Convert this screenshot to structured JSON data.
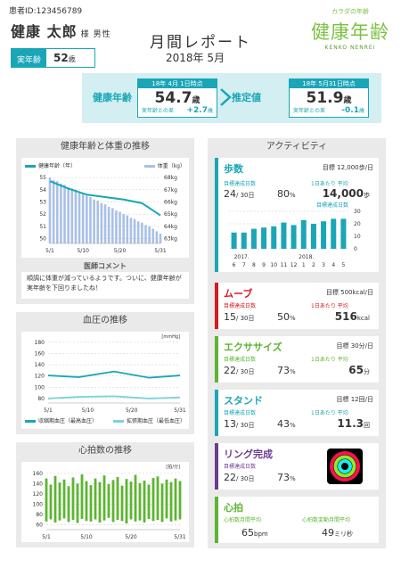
{
  "patient": {
    "id_label": "患者ID:123456789",
    "name": "健康 太郎",
    "honorific": "様",
    "gender": "男性",
    "real_age_label": "実年齢",
    "real_age_value": "52",
    "age_unit": "歳"
  },
  "report": {
    "title": "月間レポート",
    "date": "2018年  5月"
  },
  "logo": {
    "tagline": "カラダの年齢",
    "main": "健康年齢",
    "sub": "KENKO NENREI"
  },
  "banner": {
    "health_age_label": "健康年齢",
    "estimate_label": "推定値",
    "current": {
      "header": "18年  4月  1日時点",
      "value": "54.7",
      "unit": "歳",
      "diff_label": "実年齢との差",
      "diff": "+2.7",
      "diff_unit": "歳"
    },
    "estimate": {
      "header": "18年  5月31日時点",
      "value": "51.9",
      "unit": "歳",
      "diff_label": "実年齢との差",
      "diff": "-0.1",
      "diff_unit": "歳"
    }
  },
  "weight_panel": {
    "title": "健康年齢と体重の推移",
    "legend_age": "健康年齢（年）",
    "legend_weight": "体重（kg）",
    "comment_title": "医師コメント",
    "comment": "順調に体重が減っているようです。ついに、健康年齢が実年齢を下回りましたね！"
  },
  "bp_panel": {
    "title": "血圧の推移",
    "unit": "[mmHg]",
    "legend_sys": "収縮期血圧（最高血圧）",
    "legend_dia": "拡張期血圧（最低血圧）"
  },
  "hr_panel": {
    "title": "心拍数の推移",
    "unit": "[拍/分]"
  },
  "activity": {
    "title": "アクティビティ",
    "steps": {
      "name": "歩数",
      "goal": "目標 12,000歩/日",
      "lbl1": "目標達成日数",
      "lbl2": "1日あたり 平均",
      "days": "24",
      "total": "/ 30日",
      "pct": "80",
      "avg": "14,000",
      "avg_unit": "歩",
      "chart_label": "目標達成日数"
    },
    "move": {
      "name": "ムーブ",
      "goal": "目標  500kcal/日",
      "lbl1": "目標達成日数",
      "lbl2": "1日あたり 平均",
      "days": "15",
      "total": "/ 30日",
      "pct": "50",
      "avg": "516",
      "avg_unit": "kcal"
    },
    "exercise": {
      "name": "エクササイズ",
      "goal": "目標    30分/日",
      "lbl1": "目標達成日数",
      "lbl2": "1日あたり 平均",
      "days": "22",
      "total": "/ 30日",
      "pct": "73",
      "avg": "65",
      "avg_unit": "分"
    },
    "stand": {
      "name": "スタンド",
      "goal": "目標  12回/日",
      "lbl1": "目標達成日数",
      "lbl2": "1日あたり 平均",
      "days": "13",
      "total": "/ 30日",
      "pct": "43",
      "avg": "11.3",
      "avg_unit": "回"
    },
    "ring": {
      "name": "リング完成",
      "lbl1": "目標達成日数",
      "days": "22",
      "total": "/ 30日",
      "pct": "73"
    },
    "heart": {
      "name": "心拍",
      "lbl1": "心拍数月間平均",
      "lbl2": "心拍数変動月間平均",
      "v1": "65",
      "v1_unit": "bpm",
      "v2": "49",
      "v2_unit": "ミリ秒"
    },
    "pct_unit": "%"
  },
  "chart_data": [
    {
      "type": "line",
      "title": "健康年齢と体重の推移",
      "x_ticks": [
        "5/1",
        "5/10",
        "5/20",
        "5/31"
      ],
      "y_left_ticks": [
        "55",
        "54",
        "53",
        "52",
        "51",
        "50"
      ],
      "y_right_ticks": [
        "68kg",
        "67kg",
        "66kg",
        "65kg",
        "64kg",
        "63kg"
      ],
      "y_left_range": [
        49.6,
        55.3
      ],
      "y_right_range": [
        62.6,
        68.3
      ],
      "series": [
        {
          "name": "健康年齢（年）",
          "axis": "left",
          "x": [
            1,
            6,
            11,
            16,
            21,
            26,
            31
          ],
          "values": [
            54.7,
            54.1,
            53.6,
            53.4,
            53.2,
            52.9,
            51.9
          ]
        },
        {
          "name": "体重（kg）",
          "axis": "right",
          "values": [
            68.0,
            67.8,
            67.7,
            67.5,
            67.4,
            67.2,
            67.1,
            67.0,
            66.8,
            66.7,
            66.5,
            66.4,
            66.2,
            66.1,
            65.9,
            65.8,
            65.6,
            65.5,
            65.3,
            65.2,
            65.0,
            64.9,
            64.7,
            64.6,
            64.4,
            64.3,
            64.1,
            64.0,
            63.8,
            63.6,
            63.4
          ]
        }
      ]
    },
    {
      "type": "line",
      "title": "血圧の推移",
      "x_ticks": [
        "5/1",
        "5/10",
        "5/20",
        "5/31"
      ],
      "y_ticks": [
        "180",
        "160",
        "140",
        "120",
        "100",
        "80"
      ],
      "ylim": [
        72,
        186
      ],
      "series": [
        {
          "name": "収縮期血圧（最高血圧）",
          "x": [
            1,
            8,
            16,
            24,
            31
          ],
          "values": [
            121,
            118,
            128,
            117,
            121
          ]
        },
        {
          "name": "拡張期血圧（最低血圧）",
          "x": [
            1,
            8,
            16,
            24,
            31
          ],
          "values": [
            80,
            83,
            84,
            80,
            82
          ]
        }
      ]
    },
    {
      "type": "bar",
      "title": "心拍数の推移",
      "x_ticks": [
        "5/1",
        "5/10",
        "5/20",
        "5/31"
      ],
      "y_ticks": [
        "160",
        "140",
        "120",
        "100",
        "80",
        "60"
      ],
      "ylim": [
        50,
        165
      ],
      "values": [
        150,
        138,
        155,
        142,
        148,
        135,
        152,
        140,
        158,
        145,
        137,
        150,
        143,
        156,
        139,
        147,
        153,
        136,
        149,
        144,
        157,
        141,
        146,
        138,
        151,
        154,
        140,
        148,
        143,
        150,
        145
      ],
      "lows": [
        66,
        70,
        64,
        68,
        72,
        65,
        69,
        63,
        71,
        67,
        66,
        70,
        64,
        68,
        73,
        65,
        69,
        67,
        62,
        70,
        66,
        68,
        64,
        71,
        67,
        69,
        65,
        72,
        66,
        68,
        70
      ]
    },
    {
      "type": "bar",
      "title": "歩数",
      "y_ticks": [
        "30",
        "20",
        "10",
        "0"
      ],
      "ylim": [
        0,
        30
      ],
      "x_ticks": [
        "6",
        "7",
        "8",
        "9",
        "10",
        "11",
        "12",
        "1",
        "2",
        "3",
        "4",
        "5"
      ],
      "year_labels": [
        "2017.",
        "2018."
      ],
      "values": [
        13,
        13,
        16,
        17,
        18,
        21,
        19,
        23,
        20,
        22,
        24,
        24
      ]
    }
  ]
}
